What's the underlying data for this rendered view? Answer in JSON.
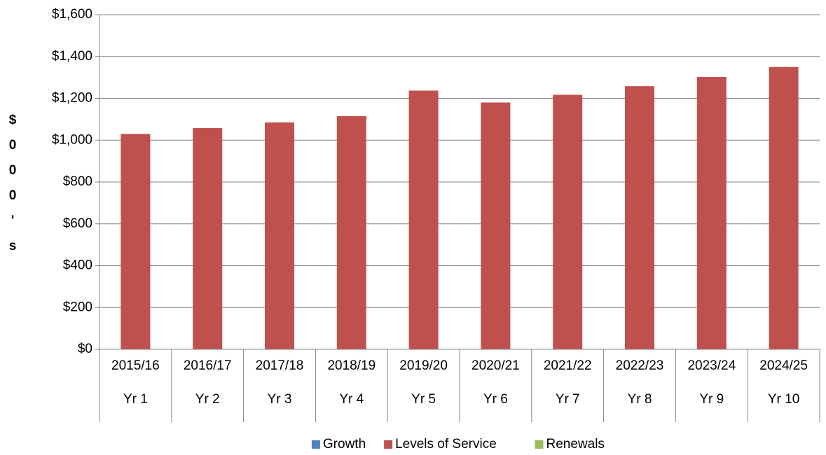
{
  "chart_data": {
    "type": "stacked_bar",
    "ylabel": "$000's",
    "categories": [
      "2015/16",
      "2016/17",
      "2017/18",
      "2018/19",
      "2019/20",
      "2020/21",
      "2021/22",
      "2022/23",
      "2023/24",
      "2024/25"
    ],
    "category_groups": [
      "Yr 1",
      "Yr 2",
      "Yr 3",
      "Yr 4",
      "Yr 5",
      "Yr 6",
      "Yr 7",
      "Yr 8",
      "Yr 9",
      "Yr 10"
    ],
    "series": [
      {
        "name": "Growth",
        "color": "#4f81bd",
        "values": [
          0,
          0,
          0,
          0,
          0,
          0,
          0,
          0,
          0,
          0
        ]
      },
      {
        "name": "Levels of Service",
        "color": "#c0504d",
        "values": [
          1030,
          1058,
          1085,
          1115,
          1237,
          1180,
          1217,
          1258,
          1302,
          1350
        ]
      },
      {
        "name": "Renewals",
        "color": "#9bbb59",
        "values": [
          0,
          0,
          0,
          0,
          0,
          0,
          0,
          0,
          0,
          0
        ]
      }
    ],
    "ylim": [
      0,
      1600
    ],
    "yticks": [
      {
        "value": 0,
        "label": "$0"
      },
      {
        "value": 200,
        "label": "$200"
      },
      {
        "value": 400,
        "label": "$400"
      },
      {
        "value": 600,
        "label": "$600"
      },
      {
        "value": 800,
        "label": "$800"
      },
      {
        "value": 1000,
        "label": "$1,000"
      },
      {
        "value": 1200,
        "label": "$1,200"
      },
      {
        "value": 1400,
        "label": "$1,400"
      },
      {
        "value": 1600,
        "label": "$1,600"
      }
    ],
    "grid": true,
    "legend": "bottom"
  }
}
